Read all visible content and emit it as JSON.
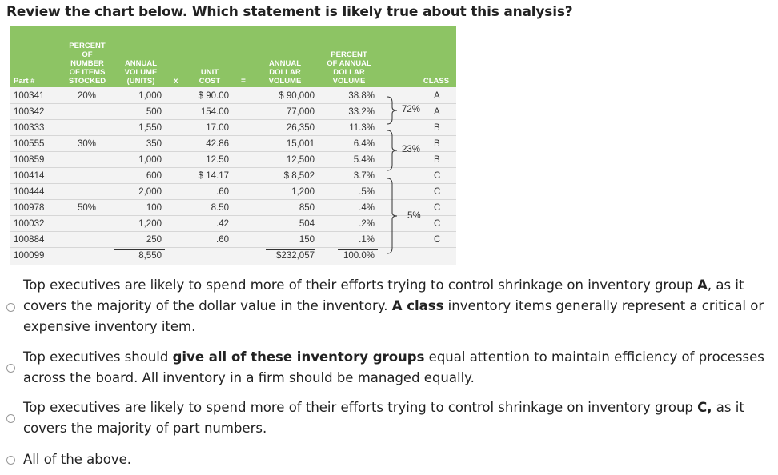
{
  "question": "Review the chart below. Which statement is likely true about this analysis?",
  "table": {
    "headers": {
      "part": "Part #",
      "percent_items": "PERCENT\nOF\nNUMBER\nOF ITEMS\nSTOCKED",
      "annual_volume": "ANNUAL\nVOLUME\n(UNITS)",
      "times": "x",
      "unit_cost": "UNIT\nCOST",
      "equals": "=",
      "annual_dollar": "ANNUAL\nDOLLAR\nVOLUME",
      "percent_dollar": "PERCENT\nOF ANNUAL\nDOLLAR\nVOLUME",
      "class": "CLASS"
    },
    "rows": [
      {
        "part": "100341",
        "pct": "20%",
        "vol": "1,000",
        "cost": "$ 90.00",
        "dol": "$ 90,000",
        "pav": "38.8%",
        "cls": "A"
      },
      {
        "part": "100342",
        "pct": "",
        "vol": "500",
        "cost": "154.00",
        "dol": "77,000",
        "pav": "33.2%",
        "cls": "A"
      },
      {
        "part": "100333",
        "pct": "",
        "vol": "1,550",
        "cost": "17.00",
        "dol": "26,350",
        "pav": "11.3%",
        "cls": "B"
      },
      {
        "part": "100555",
        "pct": "30%",
        "vol": "350",
        "cost": "42.86",
        "dol": "15,001",
        "pav": "6.4%",
        "cls": "B"
      },
      {
        "part": "100859",
        "pct": "",
        "vol": "1,000",
        "cost": "12.50",
        "dol": "12,500",
        "pav": "5.4%",
        "cls": "B"
      },
      {
        "part": "100414",
        "pct": "",
        "vol": "600",
        "cost": "$ 14.17",
        "dol": "$ 8,502",
        "pav": "3.7%",
        "cls": "C"
      },
      {
        "part": "100444",
        "pct": "",
        "vol": "2,000",
        "cost": ".60",
        "dol": "1,200",
        "pav": ".5%",
        "cls": "C"
      },
      {
        "part": "100978",
        "pct": "50%",
        "vol": "100",
        "cost": "8.50",
        "dol": "850",
        "pav": ".4%",
        "cls": "C"
      },
      {
        "part": "100032",
        "pct": "",
        "vol": "1,200",
        "cost": ".42",
        "dol": "504",
        "pav": ".2%",
        "cls": "C"
      },
      {
        "part": "100884",
        "pct": "",
        "vol": "250",
        "cost": ".60",
        "dol": "150",
        "pav": ".1%",
        "cls": "C"
      },
      {
        "part": "100099",
        "pct": "",
        "vol": "8,550",
        "cost": "",
        "dol": "$232,057",
        "pav": "100.0%",
        "cls": ""
      }
    ],
    "groups": {
      "a": "72%",
      "b": "23%",
      "c": "5%"
    }
  },
  "options": [
    {
      "seg1": "Top executives are likely to spend more of their efforts trying to control shrinkage on inventory group ",
      "b1": "A",
      "seg2": ", as it covers the majority of  the dollar value in the inventory. ",
      "b2": "A class",
      "seg3": " inventory items generally represent a critical or expensive inventory item."
    },
    {
      "seg1": "Top executives should ",
      "b1": "give all of these inventory groups",
      "seg2": " equal attention to maintain efficiency of processes across the board. All inventory in a firm should be managed equally.",
      "b2": "",
      "seg3": ""
    },
    {
      "seg1": "Top executives are likely to spend more of their efforts trying to control shrinkage on inventory group ",
      "b1": "C,",
      "seg2": " as it covers the majority of part numbers.",
      "b2": "",
      "seg3": ""
    },
    {
      "seg1": "All of the above.",
      "b1": "",
      "seg2": "",
      "b2": "",
      "seg3": ""
    }
  ],
  "colors": {
    "header_green": "#8dc464",
    "table_bg": "#f3f3f3"
  }
}
